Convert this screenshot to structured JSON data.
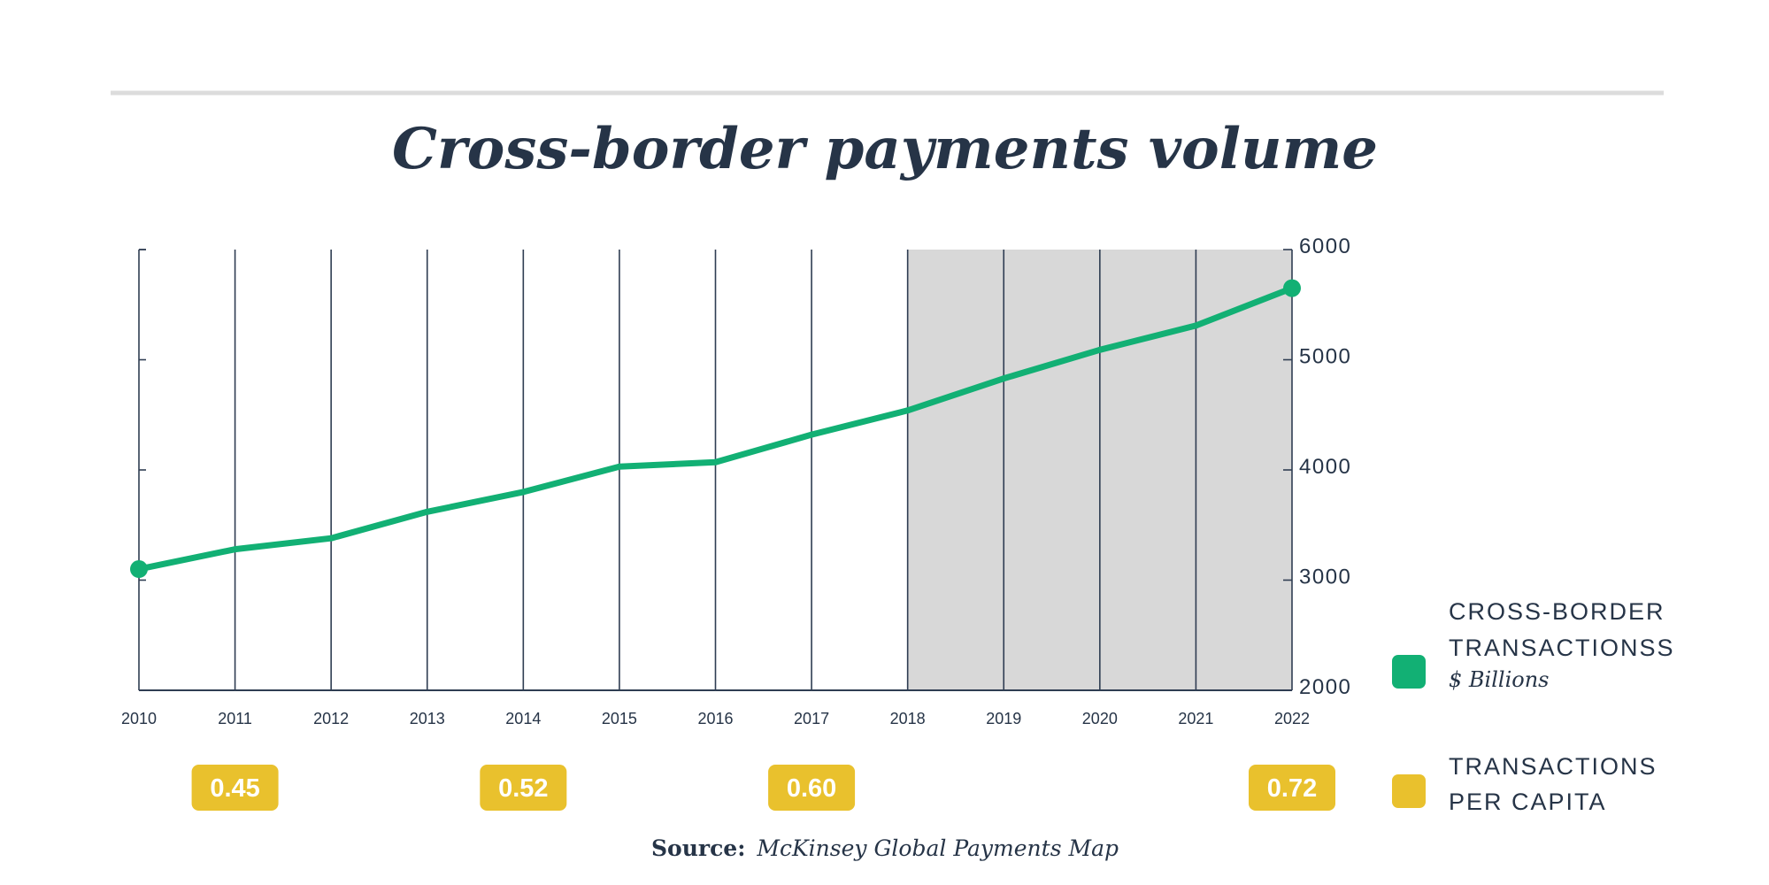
{
  "chart_data": {
    "type": "line",
    "title": "Cross-border payments volume",
    "x": [
      "2010",
      "2011",
      "2012",
      "2013",
      "2014",
      "2015",
      "2016",
      "2017",
      "2018",
      "2019",
      "2020",
      "2021",
      "2022"
    ],
    "series": [
      {
        "name": "CROSS-BORDER TRANSACTIONSS",
        "unit": "$ Billions",
        "values": [
          3100,
          3280,
          3380,
          3620,
          3800,
          4030,
          4070,
          4320,
          4540,
          4830,
          5090,
          5310,
          5650
        ],
        "color": "#12b074"
      }
    ],
    "ylim": [
      2000,
      6000
    ],
    "yticks": [
      "6000",
      "5000",
      "4000",
      "3000",
      "2000"
    ],
    "y_axis_side": "right",
    "shaded_range": [
      "2018",
      "2022"
    ],
    "shade_color": "#d8d8d8",
    "per_capita": {
      "name": "TRANSACTIONS PER CAPITA",
      "color": "#e9c12d",
      "points": [
        {
          "year": "2011",
          "value": "0.45"
        },
        {
          "year": "2014",
          "value": "0.52"
        },
        {
          "year": "2017",
          "value": "0.60"
        },
        {
          "year": "2022",
          "value": "0.72"
        }
      ]
    },
    "grid": "vertical",
    "legend_position": "right"
  },
  "legend": {
    "cross_border_line1": "CROSS-BORDER",
    "cross_border_line2": "TRANSACTIONSS",
    "cross_border_unit": "$ Billions",
    "per_capita_line1": "TRANSACTIONS",
    "per_capita_line2": "PER CAPITA"
  },
  "source": {
    "label": "Source:",
    "name": "McKinsey Global Payments Map"
  },
  "colors": {
    "text": "#263447",
    "axis": "#2f3d52",
    "rule": "#dcdcdc"
  }
}
